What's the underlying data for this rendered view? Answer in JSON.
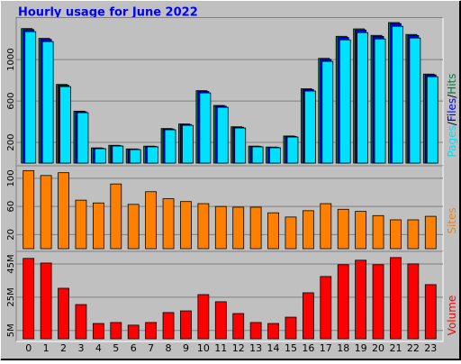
{
  "title": "Hourly usage for June 2022",
  "chart_data": [
    {
      "type": "bar",
      "ylim": [
        0,
        1380
      ],
      "yticks": [
        200,
        600,
        1000
      ],
      "grid": true,
      "legend_separator": "/",
      "series": [
        {
          "name": "Hits",
          "color": "#008040",
          "values": [
            1300,
            1205,
            760,
            502,
            147,
            172,
            137,
            164,
            334,
            378,
            700,
            557,
            351,
            164,
            155,
            262,
            718,
            1012,
            1225,
            1297,
            1234,
            1358,
            1243,
            860
          ]
        },
        {
          "name": "Files",
          "color": "#0000ff",
          "values": [
            1290,
            1195,
            752,
            496,
            143,
            169,
            134,
            161,
            329,
            373,
            692,
            550,
            346,
            161,
            152,
            258,
            710,
            1002,
            1214,
            1286,
            1224,
            1348,
            1233,
            852
          ]
        },
        {
          "name": "Pages",
          "color": "#00e0ff",
          "values": [
            1270,
            1174,
            739,
            487,
            139,
            165,
            130,
            157,
            322,
            365,
            678,
            539,
            339,
            157,
            148,
            252,
            696,
            983,
            1191,
            1261,
            1200,
            1322,
            1209,
            835
          ]
        }
      ]
    },
    {
      "type": "bar",
      "ylim": [
        0,
        114
      ],
      "yticks": [
        20,
        60,
        100
      ],
      "grid": true,
      "series": [
        {
          "name": "Sites",
          "color": "#ff8000",
          "values": [
            111,
            104,
            108,
            69,
            65,
            92,
            63,
            81,
            71,
            67,
            64,
            60,
            59,
            59,
            51,
            45,
            54,
            64,
            56,
            53,
            47,
            41,
            41,
            46
          ]
        }
      ]
    },
    {
      "type": "bar",
      "ylim": [
        0,
        51
      ],
      "grid": true,
      "yticks": [
        {
          "value": 5,
          "label": "5M"
        },
        {
          "value": 25,
          "label": "25M"
        },
        {
          "value": 45,
          "label": "45M"
        }
      ],
      "categories": [
        "0",
        "1",
        "2",
        "3",
        "4",
        "5",
        "6",
        "7",
        "8",
        "9",
        "10",
        "11",
        "12",
        "13",
        "14",
        "15",
        "16",
        "17",
        "18",
        "19",
        "20",
        "21",
        "22",
        "23"
      ],
      "series": [
        {
          "name": "Volume",
          "color": "#ff0000",
          "values": [
            48.4,
            45.6,
            30.4,
            20.6,
            9.2,
            9.8,
            8.2,
            9.8,
            15.8,
            16.8,
            26.6,
            22.3,
            15.2,
            9.8,
            9.2,
            13,
            27.7,
            37.5,
            44.6,
            47.3,
            44.6,
            48.9,
            45.1,
            32.6
          ]
        }
      ]
    }
  ]
}
